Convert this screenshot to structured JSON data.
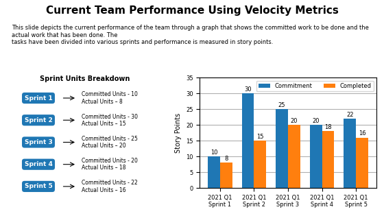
{
  "chart_data": {
    "type": "bar",
    "title": "Current Team Performance Using Velocity Metrics",
    "subtitle": "This slide depicts the current performance of the team through a graph that shows the committed work to be done and the actual work that has been done. The\ntasks have been divided into various sprints and performance is measured in story points.",
    "annotations": [
      "Sprint Units Breakdown",
      "Sprint 1",
      "Committed Units - 10\nActual Units – 8",
      "Sprint 2",
      "Committed Units - 30\nActual Units – 15",
      "Sprint 3",
      "Committed Units - 25\nActual Units – 20",
      "Sprint 4",
      "Committed Units - 20\nActual Units – 18",
      "Sprint 5",
      "Committed Units - 22\nActual Units – 16"
    ],
    "categories": [
      "2021 Q1 Sprint 1",
      "2021 Q1 Sprint 2",
      "2021 Q1 Sprint 3",
      "2021 Q1 Sprint 4",
      "2021 Q1 Sprint 5"
    ],
    "series": [
      {
        "name": "Commitment",
        "values": [
          10,
          30,
          25,
          20,
          22
        ]
      },
      {
        "name": "Completed",
        "values": [
          8,
          15,
          20,
          18,
          16
        ]
      }
    ],
    "y_label": "Story Points",
    "ylim": [
      0,
      35
    ],
    "yticks": [
      0,
      5,
      10,
      15,
      20,
      25,
      30,
      35
    ],
    "grid": true,
    "legend": "upper right",
    "data_labels": true
  }
}
